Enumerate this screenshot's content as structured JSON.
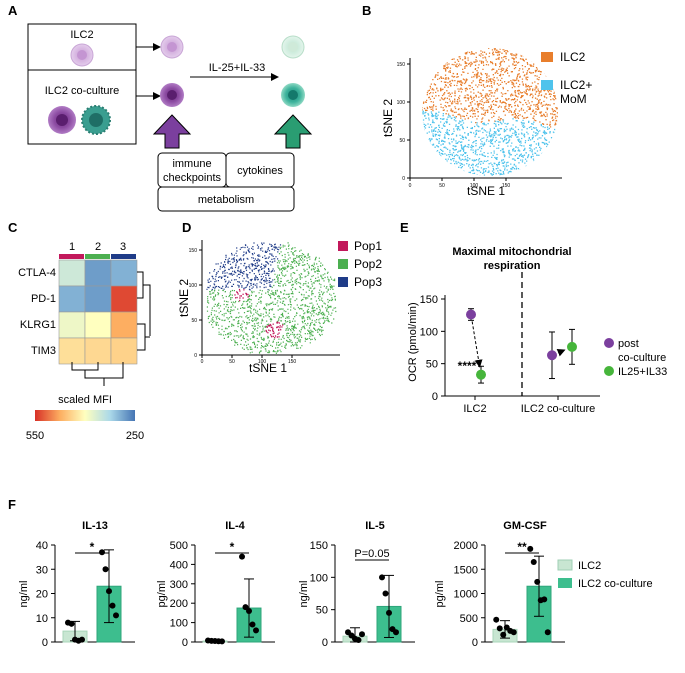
{
  "panels": {
    "a": {
      "label": "A",
      "box1": "ILC2",
      "box2": "ILC2 co-culture",
      "treatment": "IL-25+IL-33",
      "checkpoints": [
        "immune",
        "checkpoints"
      ],
      "cytokines": "cytokines",
      "metabolism": "metabolism"
    },
    "b": {
      "label": "B",
      "xlabel": "tSNE 1",
      "ylabel": "tSNE 2",
      "legend": [
        {
          "name": "ILC2",
          "color": "#E87E2C"
        },
        {
          "name": "ILC2+",
          "name2": "MoM",
          "color": "#4FC3EC"
        }
      ],
      "xticks": [
        "0",
        "50",
        "100",
        "150"
      ],
      "yticks": [
        "0",
        "50",
        "100",
        "150"
      ]
    },
    "c": {
      "label": "C",
      "columns": [
        "1",
        "2",
        "3"
      ],
      "rows": [
        "CTLA-4",
        "PD-1",
        "KLRG1",
        "TIM3"
      ],
      "scale_title": "scaled MFI",
      "scale_min": "550",
      "scale_max": "250"
    },
    "d": {
      "label": "D",
      "xlabel": "tSNE 1",
      "ylabel": "tSNE 2",
      "legend": [
        {
          "name": "Pop1",
          "color": "#C2185B"
        },
        {
          "name": "Pop2",
          "color": "#4CAF50"
        },
        {
          "name": "Pop3",
          "color": "#1F3C88"
        }
      ],
      "xticks": [
        "0",
        "50",
        "100",
        "150"
      ],
      "yticks": [
        "0",
        "50",
        "100",
        "150"
      ]
    },
    "e": {
      "label": "E",
      "title1": "Maximal mitochondrial",
      "title2": "respiration",
      "ylabel": "OCR (pmol/min)",
      "significance": "****",
      "legend": [
        {
          "name": "post",
          "name2": "co-culture",
          "color": "#7B3F9E"
        },
        {
          "name": "IL25+IL33",
          "color": "#46B53B"
        }
      ]
    },
    "f": {
      "label": "F",
      "legend": [
        {
          "name": "ILC2",
          "color": "#C8E6D2"
        },
        {
          "name": "ILC2 co-culture",
          "color": "#3DBE8E"
        }
      ]
    }
  },
  "heatmap_values": [
    [
      0.35,
      0.1,
      0.15
    ],
    [
      0.15,
      0.1,
      0.95
    ],
    [
      0.45,
      0.5,
      0.75
    ],
    [
      0.6,
      0.62,
      0.64
    ]
  ],
  "chart_data": [
    {
      "id": "E",
      "type": "scatter",
      "title": "Maximal mitochondrial respiration",
      "ylabel": "OCR (pmol/min)",
      "categories": [
        "ILC2",
        "ILC2 co-culture"
      ],
      "ylim": [
        0,
        150
      ],
      "yticks": [
        0,
        50,
        100,
        150
      ],
      "series": [
        {
          "name": "post co-culture",
          "values": [
            126,
            63
          ],
          "err": [
            9,
            36
          ]
        },
        {
          "name": "IL25+IL33",
          "values": [
            33,
            76
          ],
          "err": [
            13,
            27
          ]
        }
      ]
    },
    {
      "id": "F1",
      "type": "bar",
      "title": "IL-13",
      "ylabel": "ng/ml",
      "categories": [
        "ILC2",
        "ILC2 co-culture"
      ],
      "values": [
        4.5,
        23
      ],
      "err": [
        4,
        15
      ],
      "points": [
        [
          8,
          7.5,
          1,
          0.5,
          1
        ],
        [
          37,
          30,
          21,
          15,
          11
        ]
      ],
      "ylim": [
        0,
        40
      ],
      "yticks": [
        0,
        10,
        20,
        30,
        40
      ],
      "significance": "*"
    },
    {
      "id": "F2",
      "type": "bar",
      "title": "IL-4",
      "ylabel": "pg/ml",
      "categories": [
        "ILC2",
        "ILC2 co-culture"
      ],
      "values": [
        5,
        175
      ],
      "err": [
        3,
        150
      ],
      "points": [
        [
          8,
          6,
          5,
          4,
          3
        ],
        [
          440,
          180,
          160,
          90,
          60
        ]
      ],
      "ylim": [
        0,
        500
      ],
      "yticks": [
        0,
        100,
        200,
        300,
        400,
        500
      ],
      "significance": "*"
    },
    {
      "id": "F3",
      "type": "bar",
      "title": "IL-5",
      "ylabel": "ng/ml",
      "categories": [
        "ILC2",
        "ILC2 co-culture"
      ],
      "values": [
        9,
        55
      ],
      "err": [
        13,
        48
      ],
      "points": [
        [
          15,
          10,
          5,
          3,
          12
        ],
        [
          100,
          75,
          45,
          20,
          15
        ]
      ],
      "ylim": [
        0,
        150
      ],
      "yticks": [
        0,
        50,
        100,
        150
      ],
      "significance": "P=0.05"
    },
    {
      "id": "F4",
      "type": "bar",
      "title": "GM-CSF",
      "ylabel": "pg/ml",
      "categories": [
        "ILC2",
        "ILC2 co-culture"
      ],
      "values": [
        260,
        1150
      ],
      "err": [
        180,
        620
      ],
      "points": [
        [
          460,
          280,
          150,
          300,
          230,
          200
        ],
        [
          1920,
          1650,
          1240,
          860,
          880,
          200
        ]
      ],
      "ylim": [
        0,
        2000
      ],
      "yticks": [
        0,
        500,
        1000,
        1500,
        2000
      ],
      "significance": "**"
    }
  ]
}
